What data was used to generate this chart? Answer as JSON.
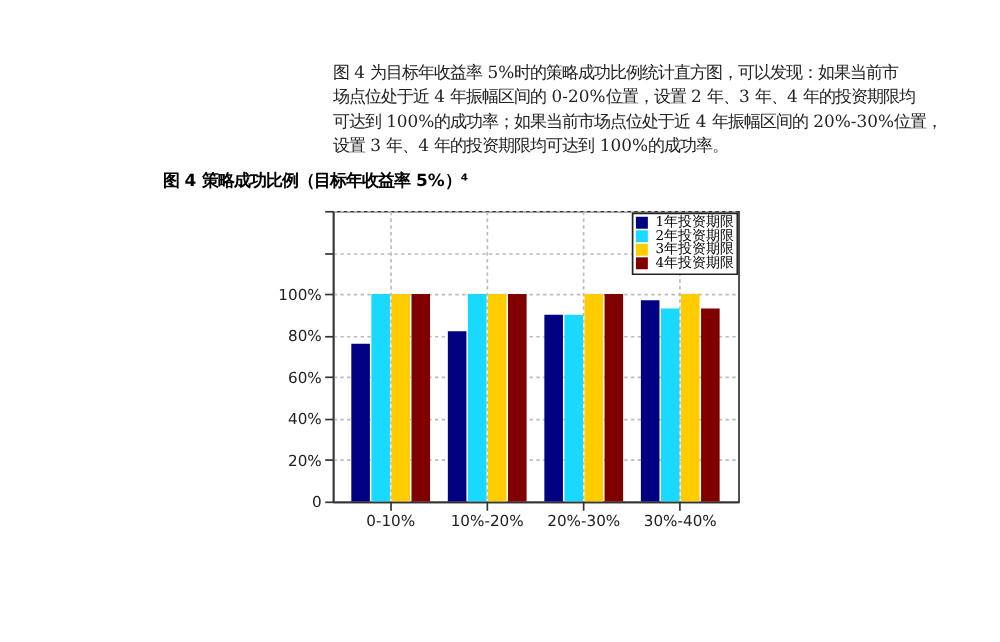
{
  "chart_data": {
    "type": "bar",
    "title": "图 4 策略成功比例（目标年收益率 5%）⁴",
    "annotations": [
      "图 4 为目标年收益率 5%时的策略成功比例统计直方图，可以发现：如果当前市场点位处于近 4 年振幅区间的 0-20%位置，设置 2 年、3 年、4 年的投资期限均可达到 100%的成功率；如果当前市场点位处于近 4 年振幅区间的 20%-30%位置，设置 3 年、4 年的投资期限均可达到 100%的成功率。"
    ],
    "categories": [
      "0-10%",
      "10%-20%",
      "20%-30%",
      "30%-40%"
    ],
    "series": [
      {
        "name": "1年投资期限",
        "color": "#000080",
        "values": [
          76,
          82,
          90,
          97
        ]
      },
      {
        "name": "2年投资期限",
        "color": "#1ad9ff",
        "values": [
          100,
          100,
          90,
          93
        ]
      },
      {
        "name": "3年投资期限",
        "color": "#ffcc00",
        "values": [
          100,
          100,
          100,
          100
        ]
      },
      {
        "name": "4年投资期限",
        "color": "#800000",
        "values": [
          100,
          100,
          100,
          93
        ]
      }
    ],
    "ylim": [
      0,
      140
    ],
    "yticks": [
      0,
      {
        "value": 20,
        "label": "20%"
      },
      {
        "value": 40,
        "label": "40%"
      },
      {
        "value": 60,
        "label": "60%"
      },
      {
        "value": 80,
        "label": "80%"
      },
      {
        "value": 100,
        "label": "100%"
      },
      {
        "value": 120,
        "label": null
      },
      {
        "value": 140,
        "label": null
      }
    ],
    "grid": true,
    "legend": "top right"
  }
}
